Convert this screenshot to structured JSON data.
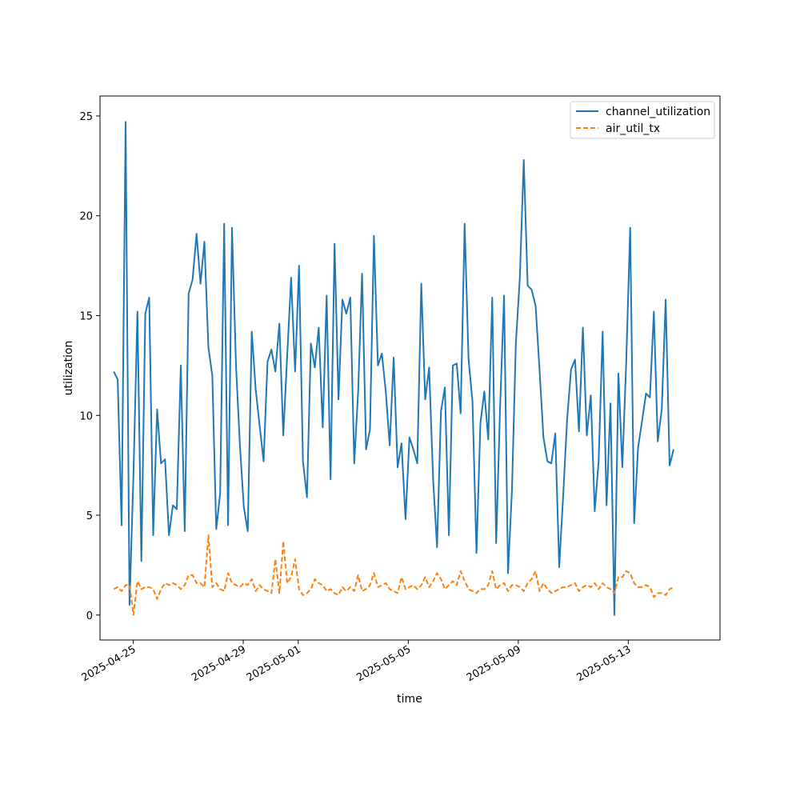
{
  "chart_data": {
    "type": "line",
    "title": "",
    "xlabel": "time",
    "ylabel": "utilization",
    "xlim": [
      "2025-04-23T19:00",
      "2025-05-16T08:00"
    ],
    "ylim": [
      -1.25,
      26.0
    ],
    "grid": false,
    "legend_position": "top-right",
    "x_ticks": [
      {
        "date": "2025-04-25",
        "label": "2025-04-25"
      },
      {
        "date": "2025-04-29",
        "label": "2025-04-29"
      },
      {
        "date": "2025-05-01",
        "label": "2025-05-01"
      },
      {
        "date": "2025-05-05",
        "label": "2025-05-05"
      },
      {
        "date": "2025-05-09",
        "label": "2025-05-09"
      },
      {
        "date": "2025-05-13",
        "label": "2025-05-13"
      }
    ],
    "y_ticks": [
      0,
      5,
      10,
      15,
      20,
      25
    ],
    "x_start": "2025-04-24T07:00",
    "x_step_hours": 3.44,
    "series": [
      {
        "name": "channel_utilization",
        "color": "#1f77b4",
        "dash": "solid",
        "values": [
          12.2,
          11.8,
          4.5,
          24.7,
          0.5,
          7.0,
          15.2,
          2.7,
          15.1,
          15.9,
          4.0,
          10.3,
          7.6,
          7.8,
          4.0,
          5.5,
          5.3,
          12.5,
          4.2,
          16.1,
          16.8,
          19.1,
          16.6,
          18.7,
          13.4,
          12.0,
          4.3,
          6.1,
          19.6,
          4.5,
          19.4,
          12.5,
          8.5,
          5.4,
          4.2,
          14.2,
          11.3,
          9.5,
          7.7,
          12.7,
          13.3,
          12.2,
          14.6,
          9.0,
          13.0,
          16.9,
          12.2,
          17.5,
          7.7,
          5.9,
          13.6,
          12.4,
          14.4,
          9.4,
          16.0,
          6.8,
          18.6,
          10.8,
          15.8,
          15.1,
          15.9,
          7.6,
          11.2,
          17.1,
          8.3,
          9.3,
          19.0,
          12.5,
          13.1,
          11.2,
          8.5,
          12.9,
          7.4,
          8.6,
          4.8,
          8.9,
          8.3,
          7.6,
          16.6,
          10.8,
          12.4,
          6.8,
          3.4,
          10.2,
          11.4,
          4.0,
          12.5,
          12.6,
          10.1,
          19.6,
          12.8,
          10.7,
          3.1,
          9.6,
          11.2,
          8.8,
          15.9,
          3.6,
          10.4,
          16.0,
          2.1,
          6.2,
          13.6,
          16.9,
          22.8,
          16.5,
          16.3,
          15.5,
          12.3,
          8.9,
          7.7,
          7.6,
          9.1,
          2.4,
          6.0,
          9.8,
          12.3,
          12.8,
          9.2,
          14.4,
          9.0,
          11.0,
          5.2,
          7.7,
          14.2,
          5.5,
          10.6,
          0.0,
          12.1,
          7.4,
          12.7,
          19.4,
          4.6,
          8.4,
          9.7,
          11.1,
          10.9,
          15.2,
          8.7,
          10.3,
          15.8,
          7.5,
          8.3
        ]
      },
      {
        "name": "air_util_tx",
        "color": "#ff7f0e",
        "dash": "dashed",
        "values": [
          1.3,
          1.4,
          1.2,
          1.5,
          1.5,
          0.0,
          1.7,
          1.3,
          1.4,
          1.4,
          1.3,
          0.8,
          1.3,
          1.6,
          1.5,
          1.6,
          1.5,
          1.3,
          1.5,
          2.0,
          2.0,
          1.6,
          1.6,
          1.4,
          4.0,
          1.4,
          1.6,
          1.3,
          1.2,
          2.1,
          1.6,
          1.5,
          1.4,
          1.6,
          1.5,
          1.8,
          1.2,
          1.5,
          1.3,
          1.2,
          1.1,
          2.8,
          1.1,
          3.7,
          1.6,
          1.9,
          2.8,
          1.3,
          1.0,
          1.1,
          1.3,
          1.8,
          1.6,
          1.5,
          1.2,
          1.3,
          1.1,
          1.0,
          1.4,
          1.2,
          1.4,
          1.2,
          2.0,
          1.2,
          1.3,
          1.5,
          2.1,
          1.4,
          1.5,
          1.6,
          1.3,
          1.2,
          1.1,
          1.9,
          1.3,
          1.4,
          1.5,
          1.3,
          1.5,
          1.9,
          1.4,
          1.7,
          2.1,
          1.8,
          1.3,
          1.5,
          1.7,
          1.5,
          2.2,
          1.7,
          1.3,
          1.2,
          1.1,
          1.3,
          1.3,
          1.5,
          2.2,
          1.3,
          1.5,
          1.6,
          1.2,
          1.5,
          1.5,
          1.4,
          1.2,
          1.6,
          1.8,
          2.2,
          1.2,
          1.6,
          1.3,
          1.1,
          1.2,
          1.3,
          1.4,
          1.4,
          1.5,
          1.6,
          1.2,
          1.4,
          1.5,
          1.4,
          1.6,
          1.3,
          1.6,
          1.4,
          1.3,
          1.1,
          1.9,
          1.9,
          2.2,
          2.1,
          1.6,
          1.4,
          1.4,
          1.5,
          1.4,
          0.9,
          1.1,
          1.1,
          1.0,
          1.3,
          1.4
        ]
      }
    ]
  }
}
